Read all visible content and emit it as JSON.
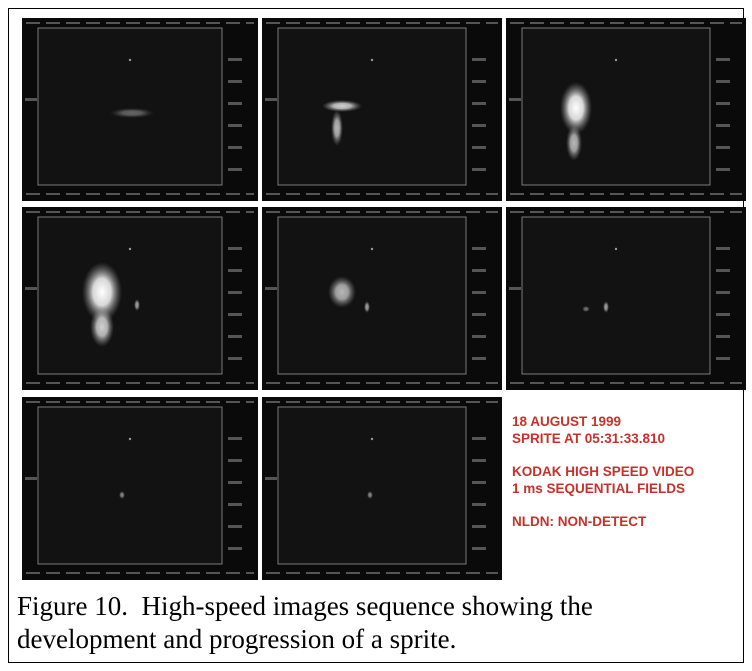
{
  "figure": {
    "annotations": [
      [
        "18 AUGUST 1999",
        "SPRITE AT 05:31:33.810"
      ],
      [
        "KODAK HIGH SPEED VIDEO",
        "1 ms SEQUENTIAL FIELDS"
      ],
      [
        "NLDN: NON-DETECT"
      ]
    ],
    "caption": "Figure 10.  High-speed images sequence showing the development and progression of a sprite."
  }
}
